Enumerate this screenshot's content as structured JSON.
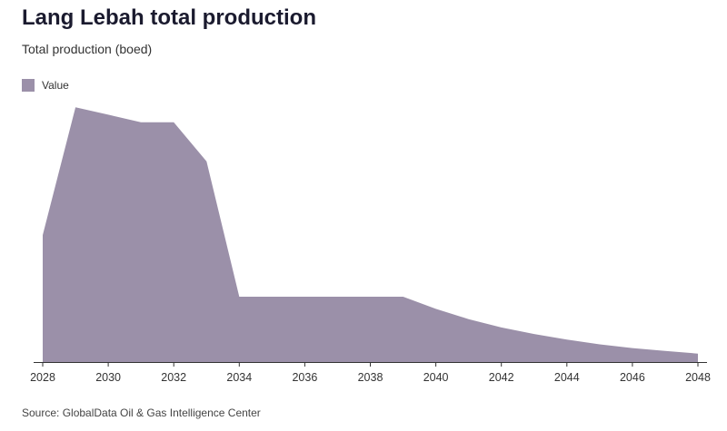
{
  "header": {
    "title": "Lang Lebah total production",
    "subtitle": "Total production (boed)"
  },
  "legend": {
    "label": "Value"
  },
  "watermark": "GlobalData",
  "footer": {
    "source": "Source: GlobalData Oil & Gas Intelligence Center"
  },
  "colors": {
    "area": "#9b90a9",
    "axis": "#333333"
  },
  "chart_data": {
    "type": "area",
    "title": "Lang Lebah total production",
    "subtitle": "Total production (boed)",
    "xlabel": "",
    "ylabel": "",
    "grid": false,
    "legend_position": "top-left",
    "series": [
      {
        "name": "Value",
        "x": [
          2028,
          2029,
          2030,
          2031,
          2032,
          2033,
          2034,
          2035,
          2036,
          2037,
          2038,
          2039,
          2040,
          2041,
          2042,
          2043,
          2044,
          2045,
          2046,
          2047,
          2048
        ],
        "values": [
          136,
          273,
          265,
          257,
          257,
          215,
          70,
          70,
          70,
          70,
          70,
          70,
          57,
          46,
          37,
          30,
          24,
          19,
          15,
          12,
          9
        ]
      }
    ],
    "x_ticks": [
      "2028",
      "2030",
      "2032",
      "2034",
      "2036",
      "2038",
      "2040",
      "2042",
      "2044",
      "2046",
      "2048"
    ],
    "xlim": [
      2028,
      2048
    ],
    "ylim": [
      0,
      280
    ]
  }
}
